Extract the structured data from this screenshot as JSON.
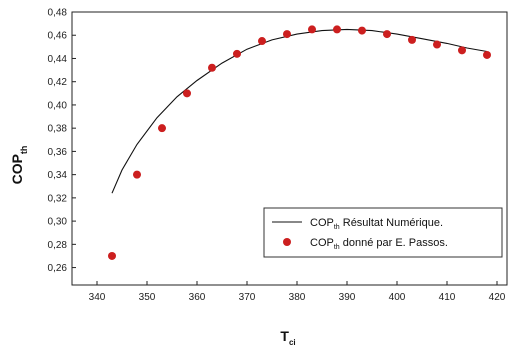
{
  "chart_data": {
    "type": "line",
    "xlabel": "T",
    "xlabel_sub": "ci",
    "ylabel": "COP",
    "ylabel_sub": "th",
    "xlim": [
      335,
      422
    ],
    "ylim": [
      0.245,
      0.48
    ],
    "x_ticks": [
      340,
      350,
      360,
      370,
      380,
      390,
      400,
      410,
      420
    ],
    "y_ticks": [
      0.26,
      0.28,
      0.3,
      0.32,
      0.34,
      0.36,
      0.38,
      0.4,
      0.42,
      0.44,
      0.46,
      0.48
    ],
    "x_tick_labels": [
      "340",
      "350",
      "360",
      "370",
      "380",
      "390",
      "400",
      "410",
      "420"
    ],
    "y_tick_labels": [
      "0,26",
      "0,28",
      "0,30",
      "0,32",
      "0,34",
      "0,36",
      "0,38",
      "0,40",
      "0,42",
      "0,44",
      "0,46",
      "0,48"
    ],
    "grid": false,
    "legend_position": "bottom-right",
    "series": [
      {
        "name": "COP",
        "name_sub": "th",
        "name_rest": " Résultat Numérique.",
        "kind": "line",
        "color": "#111111",
        "x": [
          343,
          345,
          348,
          352,
          356,
          360,
          365,
          370,
          375,
          380,
          385,
          390,
          395,
          400,
          405,
          410,
          414,
          418
        ],
        "y": [
          0.324,
          0.344,
          0.366,
          0.389,
          0.407,
          0.421,
          0.436,
          0.448,
          0.456,
          0.461,
          0.464,
          0.465,
          0.464,
          0.461,
          0.457,
          0.453,
          0.449,
          0.446
        ]
      },
      {
        "name": "COP",
        "name_sub": "th",
        "name_rest": " donné par E. Passos.",
        "kind": "scatter",
        "color": "#cc1f1f",
        "x": [
          343,
          348,
          353,
          358,
          363,
          368,
          373,
          378,
          383,
          388,
          393,
          398,
          403,
          408,
          413,
          418
        ],
        "y": [
          0.27,
          0.34,
          0.38,
          0.41,
          0.432,
          0.444,
          0.455,
          0.461,
          0.465,
          0.465,
          0.464,
          0.461,
          0.456,
          0.452,
          0.447,
          0.443
        ]
      }
    ]
  }
}
